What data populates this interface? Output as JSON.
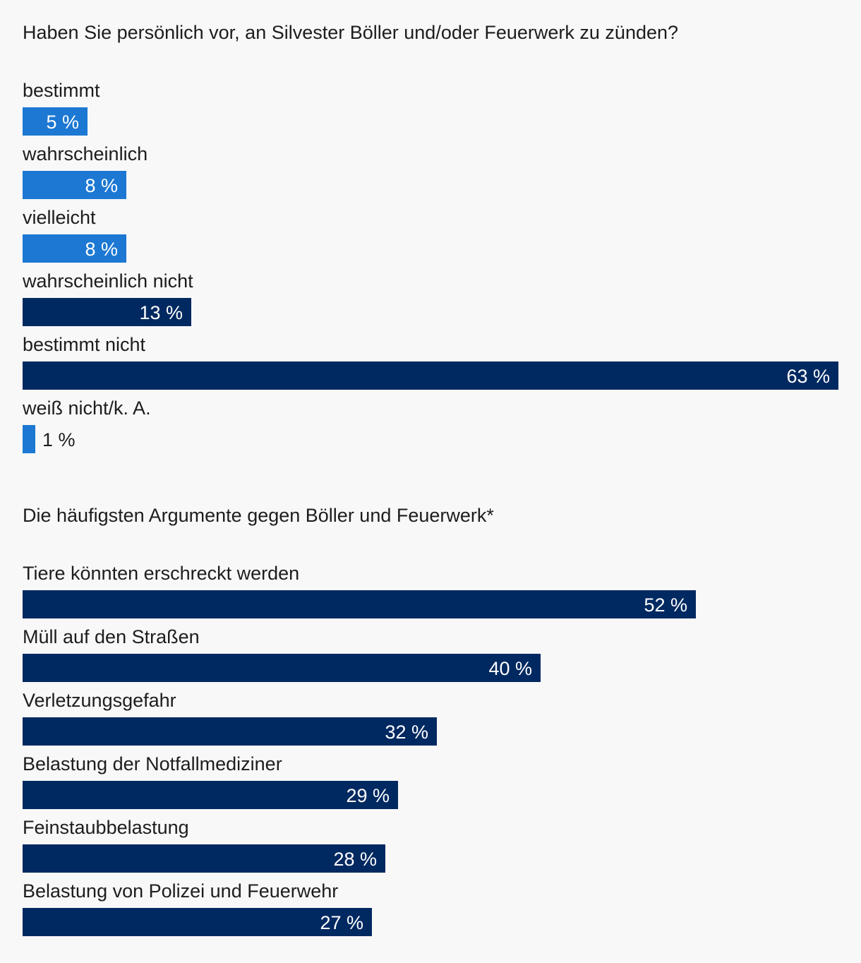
{
  "colors": {
    "light_blue": "#1c78d2",
    "dark_blue": "#012961",
    "background": "#f8f8f8",
    "text": "#1d1d1d"
  },
  "chart_data": [
    {
      "type": "bar",
      "orientation": "horizontal",
      "title": "Haben Sie persönlich vor, an Silvester Böller und/oder Feuerwerk zu zünden?",
      "categories": [
        "bestimmt",
        "wahrscheinlich",
        "vielleicht",
        "wahrscheinlich nicht",
        "bestimmt nicht",
        "weiß nicht/k. A."
      ],
      "values": [
        5,
        8,
        8,
        13,
        63,
        1
      ],
      "value_labels": [
        "5 %",
        "8 %",
        "8 %",
        "13 %",
        "63 %",
        "1 %"
      ],
      "bar_colors": [
        "#1c78d2",
        "#1c78d2",
        "#1c78d2",
        "#012961",
        "#012961",
        "#1c78d2"
      ],
      "unit": "%",
      "xlim": [
        0,
        63
      ],
      "grid": false
    },
    {
      "type": "bar",
      "orientation": "horizontal",
      "title": "Die häufigsten Argumente gegen Böller und Feuerwerk*",
      "categories": [
        "Tiere könnten erschreckt werden",
        "Müll auf den Straßen",
        "Verletzungsgefahr",
        "Belastung der Notfallmediziner",
        "Feinstaubbelastung",
        "Belastung von Polizei und Feuerwehr"
      ],
      "values": [
        52,
        40,
        32,
        29,
        28,
        27
      ],
      "value_labels": [
        "52 %",
        "40 %",
        "32 %",
        "29 %",
        "28 %",
        "27 %"
      ],
      "bar_colors": [
        "#012961",
        "#012961",
        "#012961",
        "#012961",
        "#012961",
        "#012961"
      ],
      "unit": "%",
      "xlim": [
        0,
        63
      ],
      "grid": false
    }
  ]
}
